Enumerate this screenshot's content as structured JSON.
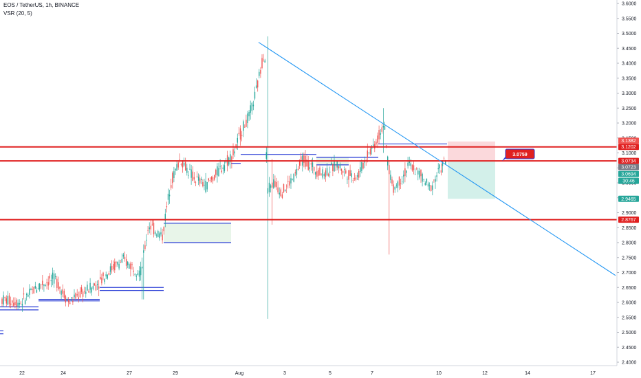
{
  "header": {
    "title": "EOS / TetherUS, 1h, BINANCE",
    "indicator": "VSR (20, 5)"
  },
  "colors": {
    "up": "#26a69a",
    "down": "#ef5350",
    "level_line": "#e02020",
    "trendline": "#2196f3",
    "zone_line": "#2b3fd6",
    "zone_fill": "#e8f5e9",
    "target_fill": "#d3f0ea",
    "stop_fill": "#fbd9dc"
  },
  "chart_data": {
    "type": "candlestick",
    "y_axis": {
      "ticks": [
        "2.4000",
        "2.4500",
        "2.5000",
        "2.5500",
        "2.6000",
        "2.6500",
        "2.7000",
        "2.7500",
        "2.8000",
        "2.8500",
        "2.9000",
        "2.9500",
        "3.0000",
        "3.0500",
        "3.1000",
        "3.1500",
        "3.2000",
        "3.2500",
        "3.3000",
        "3.3500",
        "3.4000",
        "3.4500",
        "3.5000",
        "3.5500",
        "3.6000"
      ]
    },
    "x_axis": {
      "ticks": [
        "22",
        "24",
        "27",
        "29",
        "Aug",
        "3",
        "5",
        "7",
        "10",
        "12",
        "14",
        "17"
      ]
    },
    "price_tags": [
      {
        "label": "3.1382",
        "value": 3.1382,
        "color": "#ef5350"
      },
      {
        "label": "3.1202",
        "value": 3.1202,
        "color": "#e02020"
      },
      {
        "label": "3.0734",
        "value": 3.0734,
        "color": "#e02020"
      },
      {
        "label": "3.0723",
        "value": 3.0723,
        "color": "#787b86"
      },
      {
        "label": "3.0694",
        "value": 3.0694,
        "color": "#26a69a"
      },
      {
        "label": "30:46",
        "value": 3.05,
        "color": "#26a69a"
      },
      {
        "label": "2.9465",
        "value": 2.9465,
        "color": "#26a69a"
      },
      {
        "label": "2.8767",
        "value": 2.8767,
        "color": "#e02020"
      }
    ],
    "horizontal_levels": [
      3.1202,
      3.0734,
      2.8767
    ],
    "trendline": {
      "from": {
        "date": "Aug 1",
        "price": 3.47
      },
      "to": {
        "date": "Aug 17",
        "price": 2.69
      }
    },
    "callout": {
      "label": "3.0759",
      "value": 3.0759
    },
    "position": {
      "entry": 3.0734,
      "stop": 3.1382,
      "target": 2.9465
    },
    "zones": [
      {
        "top": 2.865,
        "bottom": 2.8
      },
      {
        "top": 3.085,
        "bottom": 3.06
      }
    ]
  }
}
